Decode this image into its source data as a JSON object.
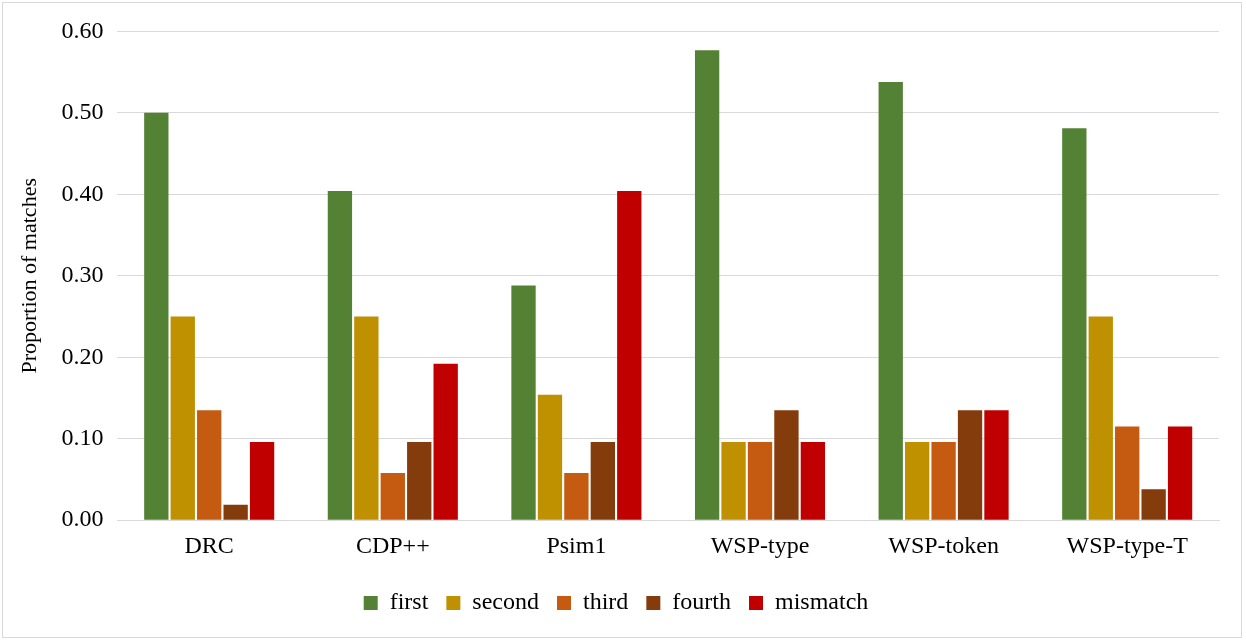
{
  "chart_data": {
    "type": "bar",
    "ylabel": "Proportion of matches",
    "categories": [
      "DRC",
      "CDP++",
      "Psim1",
      "WSP-type",
      "WSP-token",
      "WSP-type-T"
    ],
    "series": [
      {
        "name": "first",
        "color": "#548235",
        "values": [
          0.5,
          0.404,
          0.288,
          0.577,
          0.538,
          0.481
        ]
      },
      {
        "name": "second",
        "color": "#bf9000",
        "values": [
          0.25,
          0.25,
          0.154,
          0.096,
          0.096,
          0.25
        ]
      },
      {
        "name": "third",
        "color": "#c55a11",
        "values": [
          0.135,
          0.058,
          0.058,
          0.096,
          0.096,
          0.115
        ]
      },
      {
        "name": "fourth",
        "color": "#843c0c",
        "values": [
          0.019,
          0.096,
          0.096,
          0.135,
          0.135,
          0.038
        ]
      },
      {
        "name": "mismatch",
        "color": "#c00000",
        "values": [
          0.096,
          0.192,
          0.404,
          0.096,
          0.135,
          0.115
        ]
      }
    ],
    "ylim": [
      0,
      0.6
    ],
    "yticks": [
      {
        "value": 0,
        "label": "0.00"
      },
      {
        "value": 0.1,
        "label": "0.10"
      },
      {
        "value": 0.2,
        "label": "0.20"
      },
      {
        "value": 0.3,
        "label": "0.30"
      },
      {
        "value": 0.4,
        "label": "0.40"
      },
      {
        "value": 0.5,
        "label": "0.50"
      },
      {
        "value": 0.6,
        "label": "0.60"
      }
    ],
    "grid": "y",
    "legend": "bottom"
  }
}
